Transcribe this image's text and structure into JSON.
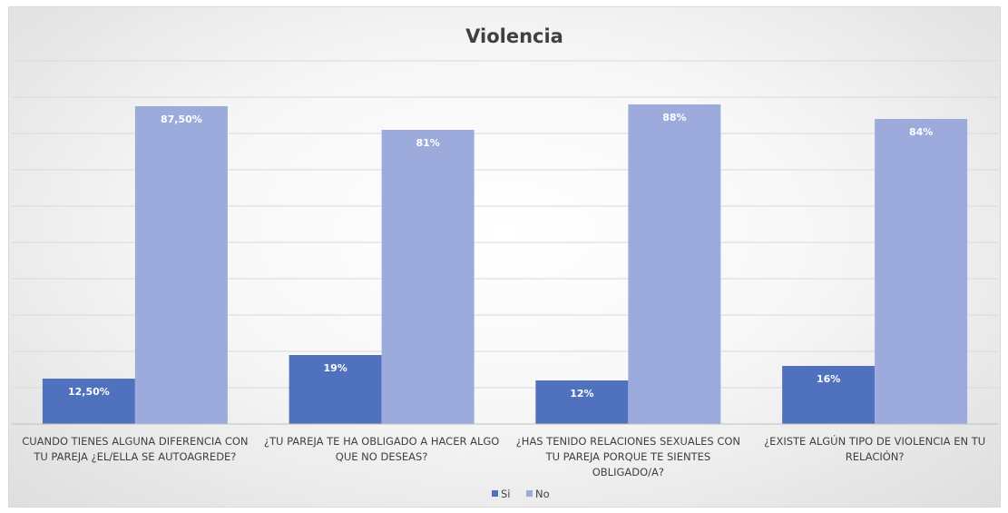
{
  "chart_data": {
    "type": "bar",
    "title": "Violencia",
    "xlabel": "",
    "ylabel": "",
    "ylim": [
      0,
      100
    ],
    "grid": true,
    "legend": "bottom",
    "categories": [
      [
        "CUANDO TIENES ALGUNA DIFERENCIA CON",
        "TU PAREJA ¿EL/ELLA SE AUTOAGREDE?"
      ],
      [
        "¿TU PAREJA TE HA OBLIGADO A HACER ALGO",
        "QUE NO DESEAS?"
      ],
      [
        "¿HAS TENIDO RELACIONES SEXUALES CON",
        "TU PAREJA PORQUE TE SIENTES",
        "OBLIGADO/A?"
      ],
      [
        "¿EXISTE ALGÚN TIPO DE VIOLENCIA EN TU",
        "RELACIÓN?"
      ]
    ],
    "series": [
      {
        "name": "Si",
        "color": "#4f71be",
        "values": [
          12.5,
          19,
          12,
          16
        ],
        "labels": [
          "12,50%",
          "19%",
          "12%",
          "16%"
        ]
      },
      {
        "name": "No",
        "color": "#9dabdc",
        "values": [
          87.5,
          81,
          88,
          84
        ],
        "labels": [
          "87,50%",
          "81%",
          "88%",
          "84%"
        ]
      }
    ]
  }
}
